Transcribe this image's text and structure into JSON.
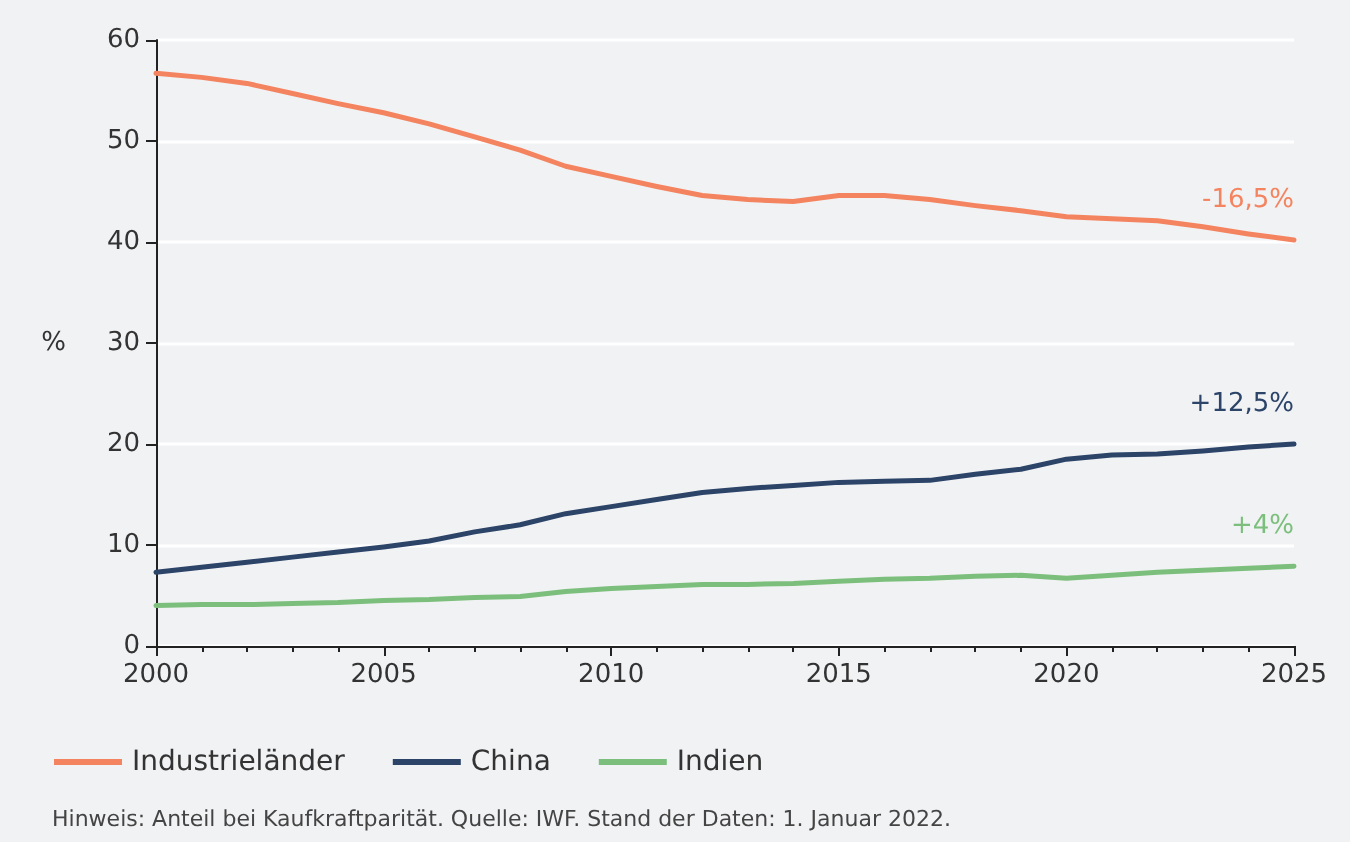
{
  "chart_data": {
    "type": "line",
    "ylabel": "%",
    "x": [
      2000,
      2001,
      2002,
      2003,
      2004,
      2005,
      2006,
      2007,
      2008,
      2009,
      2010,
      2011,
      2012,
      2013,
      2014,
      2015,
      2016,
      2017,
      2018,
      2019,
      2020,
      2021,
      2022,
      2023,
      2024,
      2025
    ],
    "series": [
      {
        "name": "Industrieländer",
        "color": "#f4845f",
        "values": [
          56.7,
          56.3,
          55.7,
          54.7,
          53.7,
          52.8,
          51.7,
          50.4,
          49.1,
          47.5,
          46.5,
          45.5,
          44.6,
          44.2,
          44.0,
          44.6,
          44.6,
          44.2,
          43.6,
          43.1,
          42.5,
          42.3,
          42.1,
          41.5,
          40.8,
          40.2
        ]
      },
      {
        "name": "China",
        "color": "#2c4468",
        "values": [
          7.3,
          7.8,
          8.3,
          8.8,
          9.3,
          9.8,
          10.4,
          11.3,
          12.0,
          13.1,
          13.8,
          14.5,
          15.2,
          15.6,
          15.9,
          16.2,
          16.3,
          16.4,
          17.0,
          17.5,
          18.5,
          18.9,
          19.0,
          19.3,
          19.7,
          20.0
        ]
      },
      {
        "name": "Indien",
        "color": "#7cbf7c",
        "values": [
          4.0,
          4.1,
          4.1,
          4.2,
          4.3,
          4.5,
          4.6,
          4.8,
          4.9,
          5.4,
          5.7,
          5.9,
          6.1,
          6.1,
          6.2,
          6.4,
          6.6,
          6.7,
          6.9,
          7.0,
          6.7,
          7.0,
          7.3,
          7.5,
          7.7,
          7.9
        ]
      }
    ],
    "xlim": [
      2000,
      2025
    ],
    "xticks": [
      2000,
      2005,
      2010,
      2015,
      2020,
      2025
    ],
    "ylim": [
      0,
      60
    ],
    "yticks": [
      0,
      10,
      20,
      30,
      40,
      50,
      60
    ],
    "grid": "y",
    "legend": "bottom",
    "marker": "none",
    "line_style": "solid",
    "annotations": [
      "Hinweis: Anteil bei Kaufkraftparität. Quelle: IWF. Stand der Daten: 1. Januar 2022.",
      "-16,5%",
      "+12,5%",
      "+4%"
    ]
  }
}
